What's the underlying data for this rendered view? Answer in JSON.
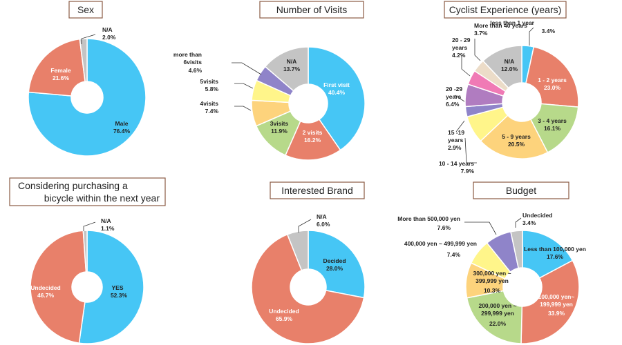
{
  "colors": {
    "blue": "#46c6f5",
    "orange": "#e8806a",
    "gray": "#c4c4c4",
    "green": "#b7d98a",
    "yellow": "#fff58a",
    "purple": "#8f84c9",
    "peach": "#fdd37c",
    "violet": "#b07cc0",
    "pink": "#f07ab5",
    "beige": "#ecdcc8"
  },
  "chart_data": [
    {
      "type": "pie",
      "title": "Sex",
      "slices": [
        {
          "label": "Male",
          "value": 76.4,
          "display": "76.4%",
          "color": "blue"
        },
        {
          "label": "Female",
          "value": 21.6,
          "display": "21.6%",
          "color": "orange"
        },
        {
          "label": "N/A",
          "value": 2.0,
          "display": "2.0%",
          "color": "gray"
        }
      ]
    },
    {
      "type": "pie",
      "title": "Number of Visits",
      "slices": [
        {
          "label": "First visit",
          "value": 40.4,
          "display": "40.4%",
          "color": "blue"
        },
        {
          "label": "2 visits",
          "value": 16.2,
          "display": "16.2%",
          "color": "orange"
        },
        {
          "label": "3visits",
          "value": 11.9,
          "display": "11.9%",
          "color": "green"
        },
        {
          "label": "4visits",
          "value": 7.4,
          "display": "7.4%",
          "color": "peach"
        },
        {
          "label": "5visits",
          "value": 5.8,
          "display": "5.8%",
          "color": "yellow"
        },
        {
          "label": "more than 6visits",
          "value": 4.6,
          "display": "4.6%",
          "color": "purple"
        },
        {
          "label": "N/A",
          "value": 13.7,
          "display": "13.7%",
          "color": "gray"
        }
      ]
    },
    {
      "type": "pie",
      "title": "Cyclist Experience (years)",
      "slices": [
        {
          "label": "less than 1 year",
          "value": 3.4,
          "display": "3.4%",
          "color": "blue"
        },
        {
          "label": "1 - 2 years",
          "value": 23.0,
          "display": "23.0%",
          "color": "orange"
        },
        {
          "label": "3 - 4 years",
          "value": 16.1,
          "display": "16.1%",
          "color": "green"
        },
        {
          "label": "5 - 9 years",
          "value": 20.5,
          "display": "20.5%",
          "color": "peach"
        },
        {
          "label": "10 - 14 years",
          "value": 7.9,
          "display": "7.9%",
          "color": "yellow"
        },
        {
          "label": "15 -19 years",
          "value": 2.9,
          "display": "2.9%",
          "color": "purple"
        },
        {
          "label": "20 -29 years",
          "value": 6.4,
          "display": "6.4%",
          "color": "violet"
        },
        {
          "label": "20 - 29 years",
          "value": 4.2,
          "display": "4.2%",
          "color": "pink"
        },
        {
          "label": "More than 40 years",
          "value": 3.7,
          "display": "3.7%",
          "color": "beige"
        },
        {
          "label": "N/A",
          "value": 12.0,
          "display": "12.0%",
          "color": "gray"
        }
      ]
    },
    {
      "type": "pie",
      "title": "Considering purchasing a bicycle within the next year",
      "title_lines": [
        "Considering purchasing a",
        "bicycle within the next year"
      ],
      "slices": [
        {
          "label": "YES",
          "value": 52.3,
          "display": "52.3%",
          "color": "blue"
        },
        {
          "label": "Undecided",
          "value": 46.7,
          "display": "46.7%",
          "color": "orange"
        },
        {
          "label": "N/A",
          "value": 1.1,
          "display": "1.1%",
          "color": "gray"
        }
      ]
    },
    {
      "type": "pie",
      "title": "Interested Brand",
      "slices": [
        {
          "label": "Decided",
          "value": 28.0,
          "display": "28.0%",
          "color": "blue"
        },
        {
          "label": "Undecided",
          "value": 65.9,
          "display": "65.9%",
          "color": "orange"
        },
        {
          "label": "N/A",
          "value": 6.0,
          "display": "6.0%",
          "color": "gray"
        }
      ]
    },
    {
      "type": "pie",
      "title": "Budget",
      "slices": [
        {
          "label": "Less than 100,000 yen",
          "value": 17.6,
          "display": "17.6%",
          "color": "blue"
        },
        {
          "label": "100,000 yen~ 199,999 yen",
          "value": 33.9,
          "display": "33.9%",
          "color": "orange"
        },
        {
          "label": "200,000 yen ~ 299,999 yen",
          "value": 22.0,
          "display": "22.0%",
          "color": "green"
        },
        {
          "label": "300,000 yen ~ 399,999 yen",
          "value": 10.3,
          "display": "10.3%",
          "color": "peach"
        },
        {
          "label": "400,000 yen ~ 499,999 yen",
          "value": 7.4,
          "display": "7.4%",
          "color": "yellow"
        },
        {
          "label": "More than 500,000 yen",
          "value": 7.6,
          "display": "7.6%",
          "color": "purple"
        },
        {
          "label": "Undecided",
          "value": 3.4,
          "display": "3.4%",
          "color": "gray"
        }
      ]
    }
  ]
}
